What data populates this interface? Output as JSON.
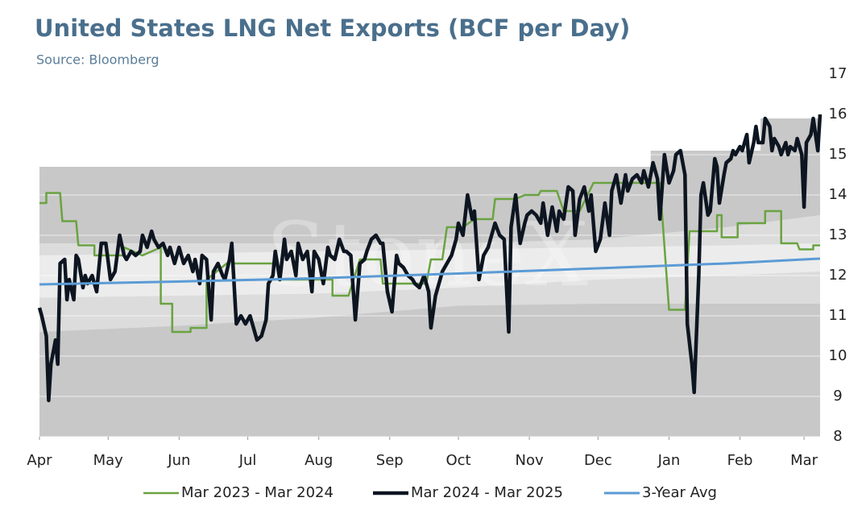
{
  "chart_data": {
    "type": "line",
    "title": "United States LNG Net Exports (BCF per Day)",
    "subtitle": "Source: Bloomberg",
    "watermark": "StoneX",
    "xlim": [
      0,
      341
    ],
    "xticks": [
      {
        "value": 0,
        "label": "Apr"
      },
      {
        "value": 30,
        "label": "May"
      },
      {
        "value": 61,
        "label": "Jun"
      },
      {
        "value": 91,
        "label": "Jul"
      },
      {
        "value": 122,
        "label": "Aug"
      },
      {
        "value": 153,
        "label": "Sep"
      },
      {
        "value": 183,
        "label": "Oct"
      },
      {
        "value": 214,
        "label": "Nov"
      },
      {
        "value": 244,
        "label": "Dec"
      },
      {
        "value": 275,
        "label": "Jan"
      },
      {
        "value": 306,
        "label": "Feb"
      },
      {
        "value": 334,
        "label": "Mar"
      }
    ],
    "ylim": [
      8,
      17
    ],
    "yticks": [
      8,
      9,
      10,
      11,
      12,
      13,
      14,
      15,
      16,
      17
    ],
    "grid": true,
    "legend": "bottom",
    "bands": [
      {
        "color": "#c8c8c8",
        "x": [
          0,
          267,
          267,
          315,
          315,
          341
        ],
        "lower": [
          8,
          8,
          8,
          8,
          8,
          8
        ],
        "upper": [
          14.7,
          14.7,
          15.1,
          15.1,
          15.9,
          15.9
        ]
      },
      {
        "color": "#dcdcdc",
        "x": [
          0,
          60,
          120,
          183,
          244,
          300,
          341
        ],
        "lower": [
          10.6,
          10.75,
          10.95,
          11.25,
          11.3,
          11.3,
          11.3
        ],
        "upper": [
          12.8,
          12.8,
          12.8,
          12.8,
          12.9,
          13.2,
          13.5
        ]
      },
      {
        "color": "#ececec",
        "x": [
          0,
          60,
          120,
          183,
          244,
          300,
          341
        ],
        "lower": [
          11.45,
          11.5,
          11.55,
          11.7,
          11.9,
          12.0,
          12.1
        ],
        "upper": [
          12.5,
          12.55,
          12.6,
          12.65,
          12.7,
          12.75,
          12.8
        ]
      }
    ],
    "series": [
      {
        "name": "Mar 2023 - Mar 2024",
        "color": "#6aa341",
        "width": 2.5,
        "x": [
          0,
          3,
          3,
          9,
          10,
          16,
          17,
          24,
          24,
          37,
          37,
          45,
          53,
          53,
          58,
          58,
          66,
          66,
          73,
          73,
          84,
          85,
          102,
          102,
          128,
          128,
          135,
          140,
          149,
          150,
          169,
          171,
          176,
          178,
          185,
          190,
          198,
          199,
          208,
          212,
          218,
          219,
          226,
          229,
          236,
          242,
          250,
          261,
          271,
          275,
          282,
          284,
          296,
          296,
          298,
          298,
          305,
          305,
          317,
          317,
          324,
          324,
          331,
          332,
          338,
          338,
          341
        ],
        "values": [
          13.8,
          13.8,
          14.05,
          14.05,
          13.35,
          13.35,
          12.75,
          12.75,
          12.5,
          12.5,
          12.7,
          12.5,
          12.7,
          11.3,
          11.3,
          10.6,
          10.6,
          10.7,
          10.7,
          11.9,
          12.4,
          12.3,
          12.3,
          11.9,
          11.9,
          11.5,
          11.5,
          12.4,
          12.4,
          11.8,
          11.8,
          12.4,
          12.4,
          13.2,
          13.2,
          13.4,
          13.4,
          13.9,
          13.9,
          14.0,
          14.0,
          14.1,
          14.1,
          13.6,
          13.6,
          14.3,
          14.3,
          14.3,
          14.3,
          11.15,
          11.15,
          13.1,
          13.1,
          13.5,
          13.5,
          12.95,
          12.95,
          13.3,
          13.3,
          13.6,
          13.6,
          12.8,
          12.8,
          12.65,
          12.65,
          12.75,
          12.75
        ]
      },
      {
        "name": "Mar 2024 - Mar 2025",
        "color": "#0d1521",
        "width": 4.5,
        "x": [
          0,
          1,
          3,
          4,
          5,
          7,
          8,
          9,
          11,
          12,
          13,
          15,
          16,
          17,
          19,
          20,
          21,
          23,
          25,
          27,
          29,
          31,
          33,
          35,
          37,
          38,
          40,
          42,
          44,
          45,
          47,
          49,
          50,
          52,
          54,
          56,
          57,
          59,
          61,
          63,
          65,
          67,
          68,
          70,
          71,
          73,
          75,
          76,
          78,
          80,
          81,
          83,
          84,
          86,
          88,
          90,
          92,
          93,
          95,
          97,
          99,
          100,
          102,
          103,
          105,
          107,
          108,
          110,
          112,
          113,
          115,
          117,
          119,
          120,
          122,
          124,
          126,
          127,
          129,
          131,
          133,
          134,
          136,
          138,
          140,
          142,
          143,
          145,
          147,
          149,
          150,
          152,
          154,
          156,
          157,
          159,
          161,
          163,
          164,
          166,
          168,
          170,
          171,
          173,
          175,
          176,
          178,
          180,
          182,
          183,
          185,
          187,
          189,
          190,
          192,
          194,
          196,
          197,
          199,
          201,
          203,
          205,
          206,
          208,
          210,
          212,
          213,
          215,
          217,
          219,
          220,
          222,
          224,
          226,
          227,
          229,
          231,
          233,
          234,
          236,
          238,
          240,
          241,
          243,
          245,
          247,
          249,
          250,
          252,
          254,
          256,
          257,
          259,
          261,
          263,
          264,
          266,
          268,
          270,
          271,
          273,
          275,
          277,
          278,
          280,
          282,
          283,
          285,
          286,
          288,
          289,
          290,
          292,
          293,
          295,
          296,
          297,
          299,
          300,
          302,
          303,
          304,
          306,
          307,
          309,
          310,
          312,
          313,
          314,
          316,
          317,
          319,
          320,
          321,
          323,
          324,
          326,
          327,
          328,
          330,
          331,
          333,
          334,
          335,
          337,
          338,
          340,
          341
        ],
        "values": [
          11.2,
          11.0,
          10.5,
          8.9,
          9.8,
          10.4,
          9.8,
          12.3,
          12.4,
          11.4,
          11.9,
          11.4,
          12.5,
          12.4,
          11.7,
          12.0,
          11.8,
          12.0,
          11.6,
          12.8,
          12.8,
          11.9,
          12.1,
          13.0,
          12.5,
          12.4,
          12.6,
          12.5,
          12.6,
          13.0,
          12.7,
          13.1,
          12.9,
          12.7,
          12.8,
          12.5,
          12.7,
          12.3,
          12.7,
          12.3,
          12.5,
          12.1,
          12.4,
          11.8,
          12.5,
          12.4,
          10.9,
          12.1,
          12.3,
          12.0,
          11.9,
          12.4,
          12.8,
          10.8,
          11.0,
          10.8,
          11.0,
          10.8,
          10.4,
          10.5,
          10.9,
          11.8,
          12.0,
          12.6,
          11.9,
          12.9,
          12.4,
          12.6,
          12.0,
          12.8,
          12.4,
          12.6,
          11.6,
          12.6,
          12.4,
          11.8,
          12.7,
          12.5,
          12.4,
          12.9,
          12.6,
          12.6,
          12.5,
          10.9,
          12.3,
          12.4,
          12.6,
          12.9,
          13.0,
          12.8,
          12.8,
          11.6,
          11.1,
          12.5,
          12.3,
          12.2,
          12.0,
          11.9,
          11.8,
          11.7,
          12.0,
          11.6,
          10.7,
          11.5,
          11.9,
          12.1,
          12.3,
          12.5,
          12.9,
          13.3,
          13.0,
          14.0,
          13.4,
          13.6,
          11.9,
          12.5,
          12.7,
          12.9,
          13.3,
          13.0,
          12.9,
          10.6,
          13.2,
          14.0,
          12.8,
          13.3,
          13.5,
          13.6,
          13.5,
          13.3,
          13.8,
          13.0,
          13.7,
          13.1,
          13.6,
          13.4,
          14.2,
          14.1,
          13.0,
          13.9,
          14.2,
          13.6,
          14.0,
          12.6,
          12.9,
          13.8,
          13.0,
          14.1,
          14.5,
          13.8,
          14.5,
          14.1,
          14.4,
          14.5,
          14.3,
          14.6,
          14.2,
          14.8,
          14.4,
          13.4,
          15.0,
          14.3,
          14.6,
          15.0,
          15.1,
          14.5,
          10.8,
          9.8,
          9.1,
          12.0,
          14.0,
          14.3,
          13.5,
          13.6,
          14.9,
          14.7,
          13.8,
          14.5,
          14.8,
          14.9,
          15.1,
          15.0,
          15.2,
          15.1,
          15.5,
          14.8,
          15.3,
          15.7,
          15.3,
          15.3,
          15.9,
          15.7,
          15.1,
          15.4,
          15.2,
          15.0,
          15.3,
          15.0,
          15.2,
          15.1,
          15.4,
          15.0,
          13.7,
          15.3,
          15.5,
          15.9,
          15.1,
          16.0
        ]
      },
      {
        "name": "3-Year Avg",
        "color": "#5b9bd5",
        "width": 3,
        "x": [
          0,
          60,
          120,
          183,
          244,
          300,
          341
        ],
        "values": [
          11.78,
          11.85,
          11.93,
          12.05,
          12.18,
          12.3,
          12.42
        ]
      }
    ]
  }
}
